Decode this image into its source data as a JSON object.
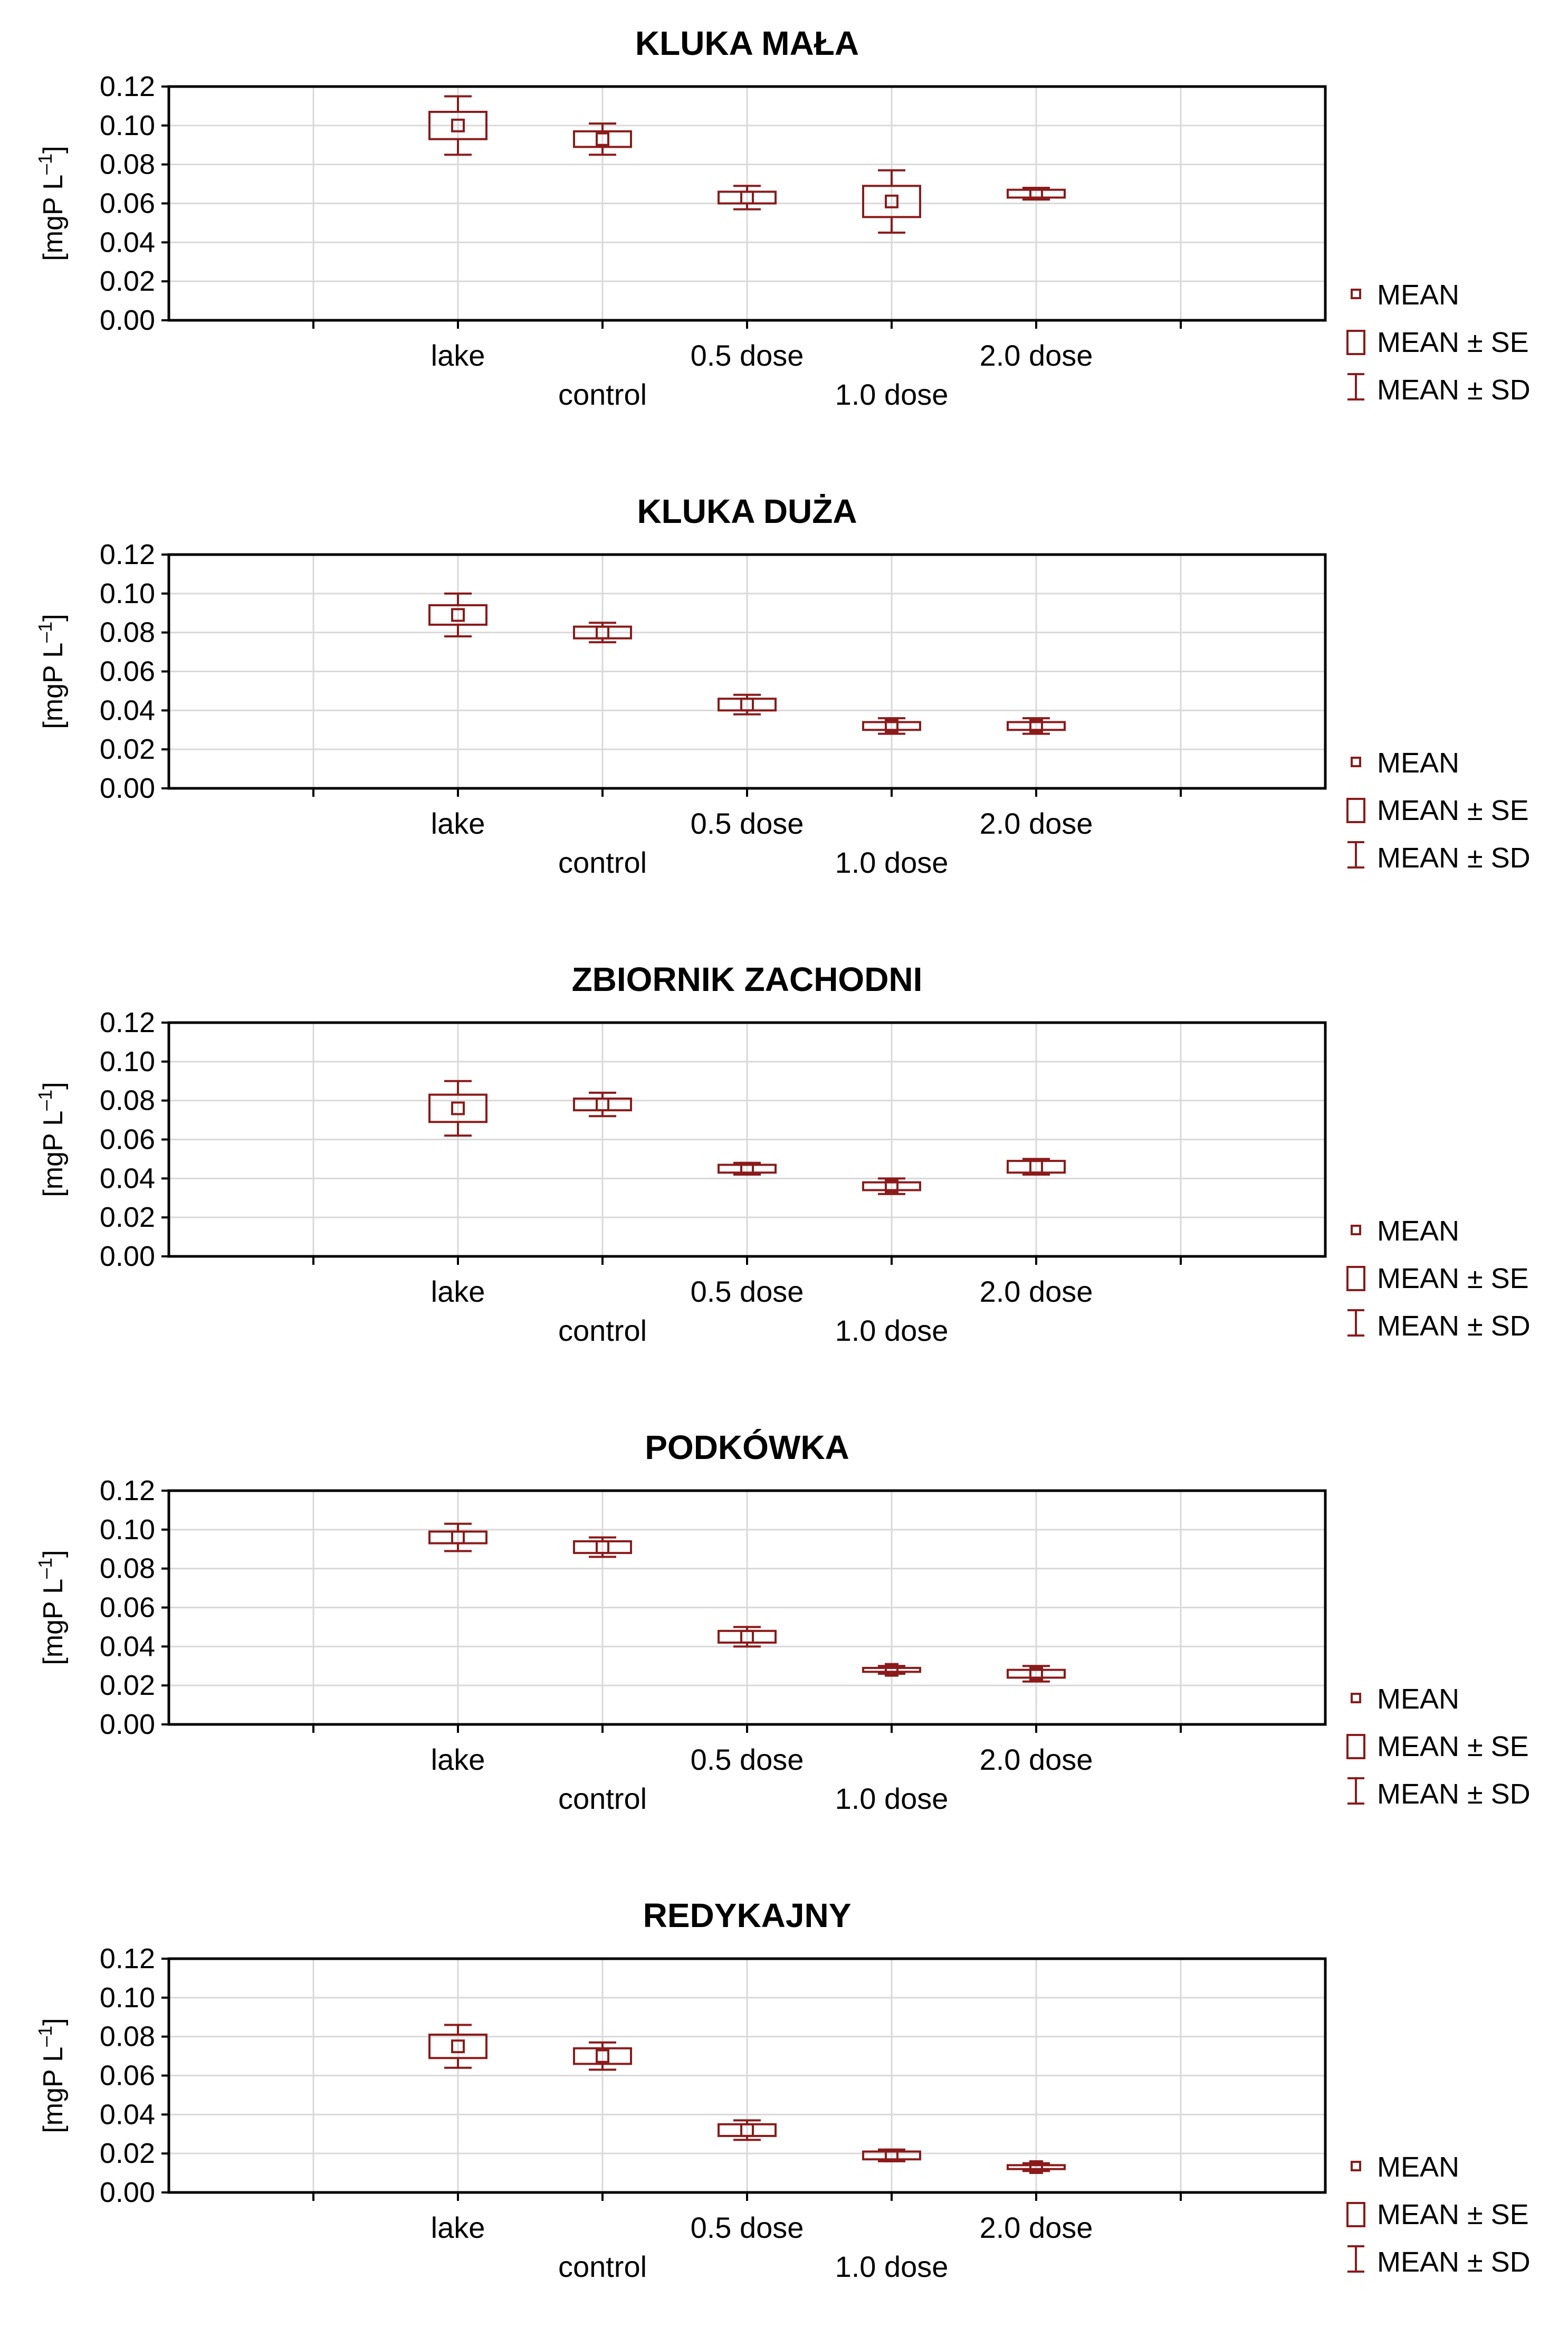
{
  "colors": {
    "series": "#8b1a1a",
    "axis": "#000000",
    "grid": "#d9d9d9"
  },
  "legend": {
    "mean": "MEAN",
    "mean_se": "MEAN ± SE",
    "mean_sd": "MEAN ± SD"
  },
  "chart_data": [
    {
      "type": "box",
      "title": "KLUKA MAŁA",
      "ylabel": "[mgP L–1]",
      "ylim": [
        0,
        0.12
      ],
      "yticks": [
        "0.00",
        "0.02",
        "0.04",
        "0.06",
        "0.08",
        "0.10",
        "0.12"
      ],
      "categories": [
        "lake",
        "control",
        "0.5 dose",
        "1.0 dose",
        "2.0 dose"
      ],
      "mean": [
        0.1,
        0.093,
        0.063,
        0.061,
        0.065
      ],
      "se": [
        0.007,
        0.004,
        0.003,
        0.008,
        0.002
      ],
      "sd": [
        0.015,
        0.008,
        0.006,
        0.016,
        0.003
      ],
      "grid": true,
      "legend_position": "right"
    },
    {
      "type": "box",
      "title": "KLUKA DUŻA",
      "ylabel": "[mgP L–1]",
      "ylim": [
        0,
        0.12
      ],
      "yticks": [
        "0.00",
        "0.02",
        "0.04",
        "0.06",
        "0.08",
        "0.10",
        "0.12"
      ],
      "categories": [
        "lake",
        "control",
        "0.5 dose",
        "1.0 dose",
        "2.0 dose"
      ],
      "mean": [
        0.089,
        0.08,
        0.043,
        0.032,
        0.032
      ],
      "se": [
        0.005,
        0.003,
        0.003,
        0.002,
        0.002
      ],
      "sd": [
        0.011,
        0.005,
        0.005,
        0.004,
        0.004
      ],
      "grid": true,
      "legend_position": "right"
    },
    {
      "type": "box",
      "title": "ZBIORNIK ZACHODNI",
      "ylabel": "[mgP L–1]",
      "ylim": [
        0,
        0.12
      ],
      "yticks": [
        "0.00",
        "0.02",
        "0.04",
        "0.06",
        "0.08",
        "0.10",
        "0.12"
      ],
      "categories": [
        "lake",
        "control",
        "0.5 dose",
        "1.0 dose",
        "2.0 dose"
      ],
      "mean": [
        0.076,
        0.078,
        0.045,
        0.036,
        0.046
      ],
      "se": [
        0.007,
        0.003,
        0.002,
        0.002,
        0.003
      ],
      "sd": [
        0.014,
        0.006,
        0.003,
        0.004,
        0.004
      ],
      "grid": true,
      "legend_position": "right"
    },
    {
      "type": "box",
      "title": "PODKÓWKA",
      "ylabel": "[mgP L–1]",
      "ylim": [
        0,
        0.12
      ],
      "yticks": [
        "0.00",
        "0.02",
        "0.04",
        "0.06",
        "0.08",
        "0.10",
        "0.12"
      ],
      "categories": [
        "lake",
        "control",
        "0.5 dose",
        "1.0 dose",
        "2.0 dose"
      ],
      "mean": [
        0.096,
        0.091,
        0.045,
        0.028,
        0.026
      ],
      "se": [
        0.003,
        0.003,
        0.003,
        0.001,
        0.002
      ],
      "sd": [
        0.007,
        0.005,
        0.005,
        0.002,
        0.004
      ],
      "grid": true,
      "legend_position": "right"
    },
    {
      "type": "box",
      "title": "REDYKAJNY",
      "ylabel": "[mgP L–1]",
      "ylim": [
        0,
        0.12
      ],
      "yticks": [
        "0.00",
        "0.02",
        "0.04",
        "0.06",
        "0.08",
        "0.10",
        "0.12"
      ],
      "categories": [
        "lake",
        "control",
        "0.5 dose",
        "1.0 dose",
        "2.0 dose"
      ],
      "mean": [
        0.075,
        0.07,
        0.032,
        0.019,
        0.013
      ],
      "se": [
        0.006,
        0.004,
        0.003,
        0.002,
        0.001
      ],
      "sd": [
        0.011,
        0.007,
        0.005,
        0.003,
        0.002
      ],
      "grid": true,
      "legend_position": "right"
    }
  ]
}
